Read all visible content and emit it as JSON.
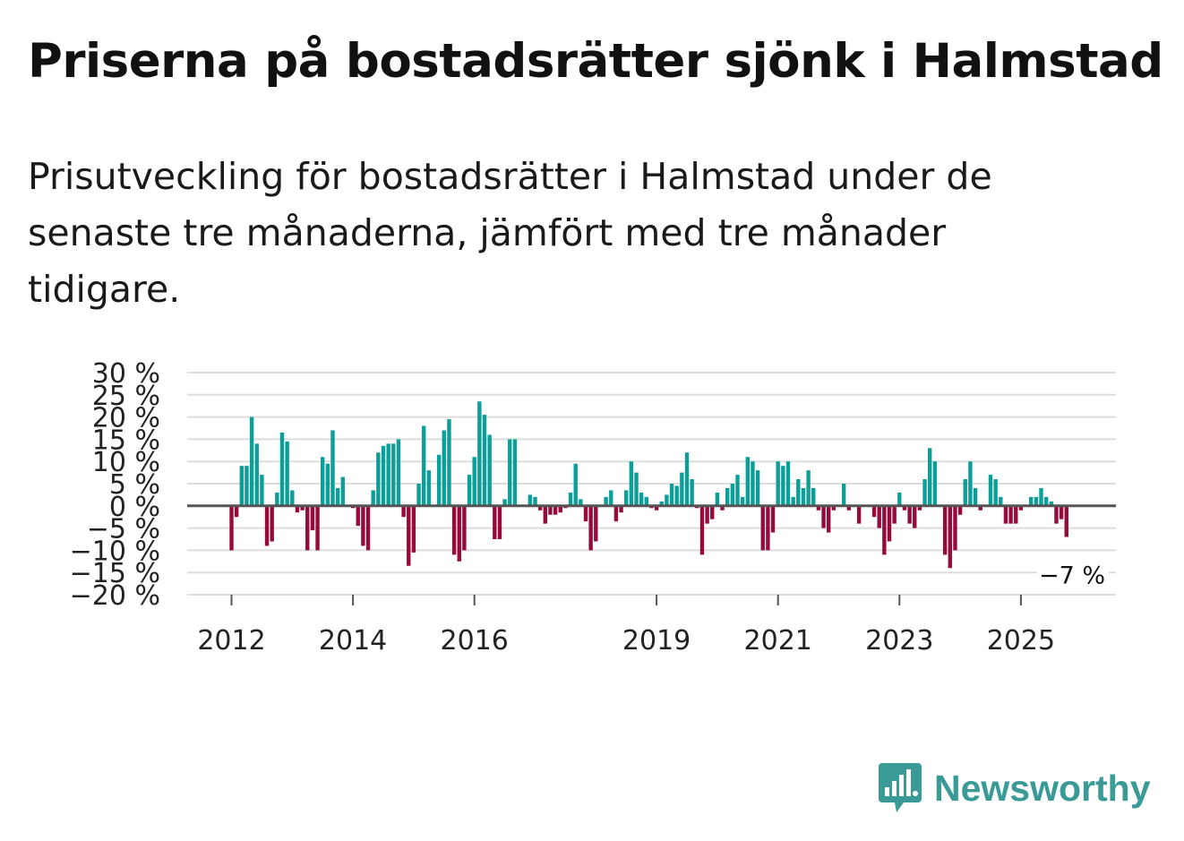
{
  "title": "Priserna på bostadsrätter sjönk i Halmstad",
  "subtitle": "Prisutveckling för bostadsrätter i Halmstad under de senaste tre månaderna, jämfört med tre månader tidigare.",
  "logo": {
    "text": "Newsworthy"
  },
  "colors": {
    "positive": "#0c9e98",
    "negative": "#960a3c",
    "zero_line": "#555555",
    "grid": "#dddddd",
    "brand": "#3a9a95"
  },
  "chart_data": {
    "type": "bar",
    "title": "Priserna på bostadsrätter sjönk i Halmstad",
    "xlabel": "",
    "ylabel": "",
    "ylim": [
      -20,
      30
    ],
    "y_ticks": [
      30,
      25,
      20,
      15,
      10,
      5,
      0,
      -5,
      -10,
      -15,
      -20
    ],
    "y_tick_labels": [
      "30 %",
      "25 %",
      "20 %",
      "15 %",
      "10 %",
      "5 %",
      "0 %",
      "−5 %",
      "−10 %",
      "−15 %",
      "−20 %"
    ],
    "x_tick_labels": [
      {
        "label": "2012",
        "index": 0
      },
      {
        "label": "2014",
        "index": 24
      },
      {
        "label": "2016",
        "index": 48
      },
      {
        "label": "2019",
        "index": 84
      },
      {
        "label": "2021",
        "index": 108
      },
      {
        "label": "2023",
        "index": 132
      },
      {
        "label": "2025",
        "index": 156
      }
    ],
    "series": [
      {
        "name": "Prisutveckling",
        "start": "2012-01",
        "values": [
          -10,
          -2.5,
          9,
          9,
          20,
          14,
          7,
          -9,
          -8,
          3,
          16.5,
          14.5,
          3.5,
          -1.5,
          -1,
          -10,
          -5.5,
          -10,
          11,
          9.5,
          17,
          4,
          6.5,
          0,
          -0.5,
          -4.5,
          -9,
          -10,
          3.5,
          12,
          13.5,
          14,
          14,
          15,
          -2.5,
          -13.5,
          -10.5,
          5,
          18,
          8,
          0,
          11.5,
          17,
          19.5,
          -11,
          -12.5,
          -10,
          7,
          11,
          23.5,
          20.5,
          16,
          -7.5,
          -7.5,
          1.5,
          15,
          15,
          0,
          0,
          2.5,
          2,
          -1,
          -4,
          -2,
          -2,
          -1.5,
          -0.5,
          3,
          9.5,
          1.5,
          -3.5,
          -10,
          -8,
          0,
          2,
          3.5,
          -3.5,
          -1.5,
          3.5,
          10,
          7.5,
          3,
          2,
          -0.5,
          -1,
          1,
          2.5,
          5,
          4.5,
          7.5,
          12,
          6,
          -0.5,
          -11,
          -4,
          -3,
          3,
          -1,
          4,
          5,
          7,
          2,
          11,
          10,
          8,
          -10,
          -10,
          -6,
          10,
          9,
          10,
          2,
          6,
          4,
          8,
          4,
          -1,
          -5,
          -6,
          -1,
          0,
          5,
          -1,
          0,
          -4,
          0,
          0,
          -2.5,
          -5,
          -11,
          -8,
          -4,
          3,
          -1,
          -4,
          -5,
          -1,
          6,
          13,
          10,
          0,
          -11,
          -14,
          -10,
          -2,
          6,
          10,
          4,
          -1,
          0,
          7,
          6,
          2,
          -4,
          -4,
          -4,
          -1,
          0,
          2,
          2,
          4,
          2,
          1,
          -4,
          -3,
          -7
        ]
      }
    ],
    "annotation": {
      "label": "−7 %",
      "value": -7,
      "index": 171
    }
  }
}
